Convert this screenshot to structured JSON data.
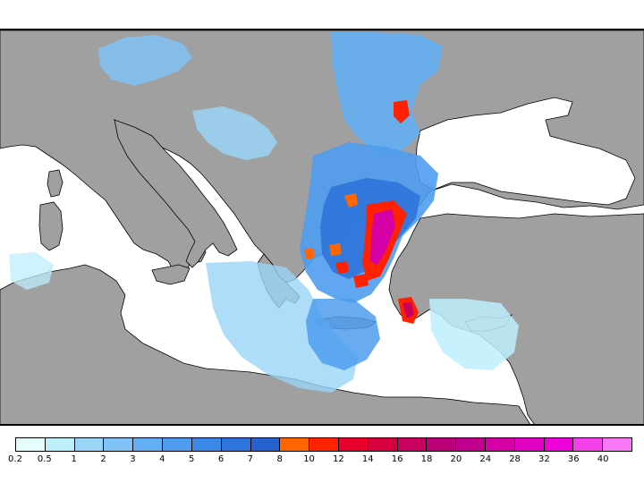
{
  "map": {
    "land_color": "#a0a0a0",
    "sea_color": "#ffffff",
    "border_color": "#000000"
  },
  "legend": {
    "bins": [
      {
        "value": "0.2",
        "color": "#e6fdfd"
      },
      {
        "value": "0.5",
        "color": "#bdeffb"
      },
      {
        "value": "1",
        "color": "#9ad5f8"
      },
      {
        "value": "2",
        "color": "#80c2f5"
      },
      {
        "value": "3",
        "color": "#64aef3"
      },
      {
        "value": "4",
        "color": "#4f9cee"
      },
      {
        "value": "5",
        "color": "#3c88e6"
      },
      {
        "value": "6",
        "color": "#2f74dc"
      },
      {
        "value": "7",
        "color": "#2862d0"
      },
      {
        "value": "8",
        "color": "#ff6600"
      },
      {
        "value": "10",
        "color": "#ff2200"
      },
      {
        "value": "12",
        "color": "#e8002a"
      },
      {
        "value": "14",
        "color": "#d60040"
      },
      {
        "value": "16",
        "color": "#c80060"
      },
      {
        "value": "18",
        "color": "#bb0078"
      },
      {
        "value": "20",
        "color": "#c0008c"
      },
      {
        "value": "24",
        "color": "#d400a6"
      },
      {
        "value": "28",
        "color": "#e000c0"
      },
      {
        "value": "32",
        "color": "#ee00d8"
      },
      {
        "value": "36",
        "color": "#f440e8"
      },
      {
        "value": "40",
        "color": "#f878f5"
      }
    ]
  }
}
